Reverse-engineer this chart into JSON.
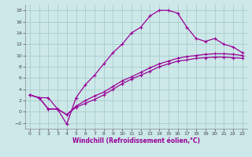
{
  "xlabel": "Windchill (Refroidissement éolien,°C)",
  "background_color": "#cce8e8",
  "grid_color": "#aacccc",
  "line_color": "#990099",
  "xlim": [
    -0.5,
    23.5
  ],
  "ylim": [
    -3,
    19
  ],
  "xticks": [
    0,
    1,
    2,
    3,
    4,
    5,
    6,
    7,
    8,
    9,
    10,
    11,
    12,
    13,
    14,
    15,
    16,
    17,
    18,
    19,
    20,
    21,
    22,
    23
  ],
  "yticks": [
    -2,
    0,
    2,
    4,
    6,
    8,
    10,
    12,
    14,
    16,
    18
  ],
  "curve1_x": [
    0,
    1,
    2,
    3,
    4,
    5,
    6,
    7,
    8,
    9,
    10,
    11,
    12,
    13,
    14,
    15,
    16,
    17,
    18,
    19,
    20,
    21,
    22,
    23
  ],
  "curve1_y": [
    3.0,
    2.5,
    2.5,
    0.5,
    -2.2,
    2.5,
    4.8,
    6.5,
    8.5,
    10.5,
    12.0,
    14.0,
    15.0,
    17.0,
    18.0,
    18.0,
    17.5,
    15.0,
    13.0,
    12.5,
    13.0,
    12.0,
    11.5,
    10.5
  ],
  "curve2_x": [
    0,
    1,
    2,
    3,
    4,
    5,
    6,
    7,
    8,
    9,
    10,
    11,
    12,
    13,
    14,
    15,
    16,
    17,
    18,
    19,
    20,
    21,
    22,
    23
  ],
  "curve2_y": [
    3.0,
    2.5,
    0.5,
    0.5,
    -0.5,
    1.0,
    2.0,
    2.8,
    3.5,
    4.5,
    5.5,
    6.2,
    7.0,
    7.8,
    8.5,
    9.0,
    9.5,
    9.8,
    10.0,
    10.2,
    10.3,
    10.3,
    10.2,
    10.0
  ],
  "curve3_x": [
    0,
    1,
    2,
    3,
    4,
    5,
    6,
    7,
    8,
    9,
    10,
    11,
    12,
    13,
    14,
    15,
    16,
    17,
    18,
    19,
    20,
    21,
    22,
    23
  ],
  "curve3_y": [
    3.0,
    2.5,
    0.5,
    0.5,
    -0.5,
    0.8,
    1.5,
    2.2,
    3.0,
    4.0,
    5.0,
    5.8,
    6.5,
    7.2,
    8.0,
    8.5,
    9.0,
    9.2,
    9.5,
    9.6,
    9.7,
    9.7,
    9.6,
    9.5
  ]
}
